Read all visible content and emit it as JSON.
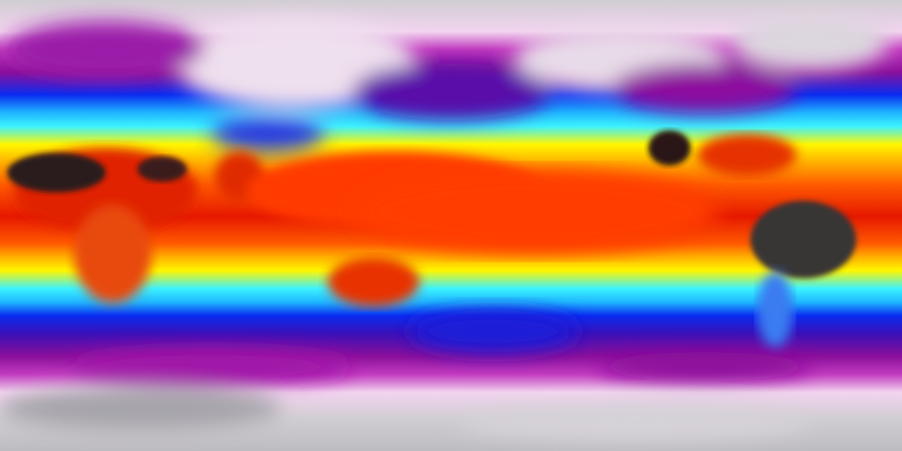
{
  "map": {
    "projection": "equirectangular",
    "colormap": [
      "#d0cdd2",
      "#f2d4ef",
      "#c23bc0",
      "#8a0f9a",
      "#3a10b8",
      "#0a2cf0",
      "#1fb6ff",
      "#3cf2ff",
      "#fff700",
      "#ffb000",
      "#ff5a00",
      "#e61800",
      "#2a1a1a"
    ],
    "colors": {
      "polar": "#c9c6cc",
      "cold": "#8a0f9a",
      "cool": "#0a2cf0",
      "mild": "#3cf2ff",
      "warm": "#fff700",
      "hot": "#ff4a00",
      "hottest": "#2a1a1a"
    }
  }
}
